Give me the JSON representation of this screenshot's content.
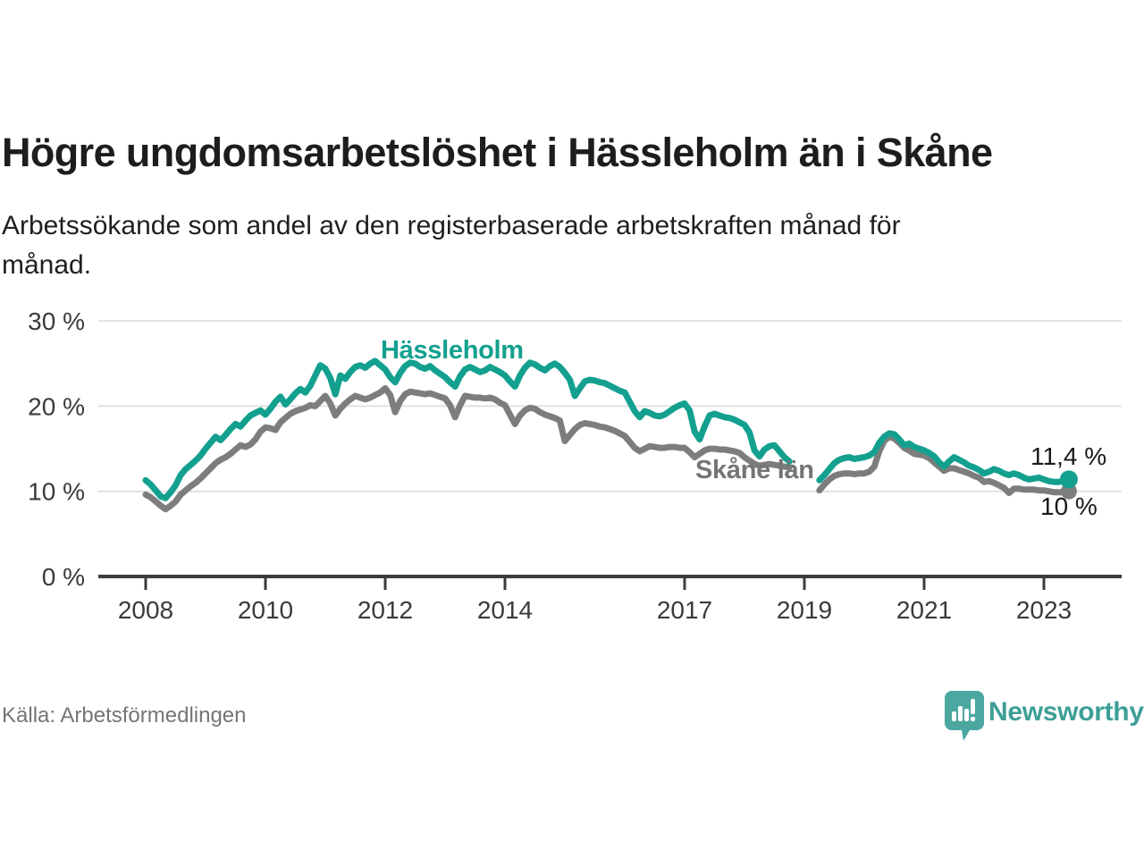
{
  "header": {
    "title": "Högre ungdomsarbetslöshet i Hässleholm än i Skåne",
    "subtitle": "Arbetssökande som andel av den registerbaserade arbetskraften månad för\nmånad."
  },
  "chart_data": {
    "type": "line",
    "x_start": "2008-01",
    "x_end": "2023-06",
    "frequency": "monthly",
    "data_gap": "no data Nov 2018 – Mar 2019",
    "x_tick_years": [
      2008,
      2010,
      2012,
      2014,
      2017,
      2019,
      2021,
      2023
    ],
    "y_ticks": [
      0,
      10,
      20,
      30
    ],
    "y_tick_labels": [
      "0 %",
      "10 %",
      "20 %",
      "30 %"
    ],
    "ylim": [
      0,
      32
    ],
    "xlim": [
      2007.2,
      2024.6
    ],
    "grid": "horizontal",
    "legend": "inline-labels",
    "series": [
      {
        "name": "Skåne län",
        "color": "#7d7d7d",
        "end_label": "10 %",
        "end_value": 10.0,
        "dot_radius": 9,
        "values": [
          9.6,
          9.3,
          8.8,
          8.3,
          7.9,
          8.3,
          8.8,
          9.6,
          10.1,
          10.6,
          11.0,
          11.5,
          12.1,
          12.7,
          13.3,
          13.7,
          14.0,
          14.4,
          14.9,
          15.4,
          15.2,
          15.5,
          16.1,
          17.0,
          17.5,
          17.4,
          17.2,
          18.1,
          18.6,
          19.1,
          19.4,
          19.6,
          19.8,
          20.1,
          20.0,
          20.6,
          21.2,
          20.3,
          18.9,
          19.7,
          20.3,
          20.8,
          21.2,
          21.0,
          20.8,
          21.0,
          21.3,
          21.6,
          22.1,
          21.3,
          19.3,
          20.6,
          21.4,
          21.7,
          21.6,
          21.5,
          21.4,
          21.5,
          21.3,
          21.1,
          20.9,
          20.1,
          18.7,
          20.1,
          21.2,
          21.1,
          21.0,
          21.0,
          20.9,
          21.0,
          20.8,
          20.4,
          20.1,
          19.0,
          17.9,
          18.9,
          19.5,
          19.8,
          19.7,
          19.3,
          19.0,
          18.8,
          18.6,
          18.3,
          15.9,
          16.6,
          17.3,
          17.8,
          18.0,
          17.9,
          17.8,
          17.6,
          17.5,
          17.3,
          17.1,
          16.8,
          16.5,
          15.8,
          15.1,
          14.7,
          15.0,
          15.3,
          15.2,
          15.1,
          15.1,
          15.2,
          15.2,
          15.1,
          15.1,
          14.6,
          14.0,
          14.4,
          14.8,
          15.0,
          15.0,
          14.9,
          14.9,
          14.8,
          14.7,
          14.5,
          14.0,
          13.6,
          13.2,
          13.0,
          13.1,
          13.2,
          13.1,
          13.0,
          12.9,
          12.8,
          null,
          null,
          null,
          null,
          null,
          10.1,
          10.8,
          11.4,
          11.8,
          12.0,
          12.1,
          12.1,
          12.0,
          12.1,
          12.1,
          12.3,
          12.9,
          14.7,
          15.9,
          16.4,
          16.2,
          15.7,
          15.1,
          14.8,
          14.4,
          14.3,
          14.2,
          13.9,
          13.4,
          12.9,
          12.4,
          12.7,
          12.7,
          12.5,
          12.3,
          12.1,
          11.8,
          11.6,
          11.1,
          11.2,
          11.0,
          10.7,
          10.4,
          9.8,
          10.3,
          10.3,
          10.2,
          10.2,
          10.2,
          10.1,
          10.1,
          10.0,
          9.9,
          9.9,
          9.9,
          10.0
        ]
      },
      {
        "name": "Hässleholm",
        "color": "#13a08f",
        "end_label": "11,4 %",
        "end_value": 11.4,
        "dot_radius": 10,
        "values": [
          11.3,
          10.8,
          10.1,
          9.4,
          9.2,
          9.9,
          10.7,
          11.9,
          12.6,
          13.1,
          13.6,
          14.2,
          15.0,
          15.7,
          16.4,
          16.0,
          16.6,
          17.3,
          17.9,
          17.6,
          18.3,
          18.9,
          19.2,
          19.5,
          19.0,
          19.7,
          20.5,
          21.1,
          20.2,
          20.8,
          21.5,
          22.0,
          21.6,
          22.4,
          23.6,
          24.8,
          24.4,
          23.3,
          21.4,
          23.6,
          23.2,
          24.0,
          24.6,
          24.8,
          24.5,
          25.0,
          25.3,
          24.8,
          24.3,
          23.4,
          22.8,
          23.9,
          24.7,
          25.1,
          25.0,
          24.6,
          24.4,
          24.7,
          24.2,
          23.8,
          23.4,
          22.8,
          22.3,
          23.5,
          24.3,
          24.6,
          24.3,
          24.0,
          24.2,
          24.6,
          24.3,
          24.0,
          23.6,
          22.9,
          22.3,
          23.6,
          24.5,
          25.1,
          24.9,
          24.5,
          24.2,
          24.7,
          25.0,
          24.6,
          23.9,
          23.1,
          21.2,
          22.1,
          22.9,
          23.1,
          23.0,
          22.8,
          22.7,
          22.4,
          22.1,
          21.8,
          21.6,
          20.5,
          19.4,
          18.7,
          19.4,
          19.2,
          18.9,
          18.8,
          19.0,
          19.4,
          19.8,
          20.1,
          20.3,
          19.5,
          17.0,
          16.1,
          17.6,
          18.9,
          19.1,
          18.9,
          18.7,
          18.6,
          18.4,
          18.1,
          17.8,
          16.9,
          14.8,
          14.1,
          14.9,
          15.3,
          15.4,
          14.7,
          14.0,
          13.5,
          null,
          null,
          null,
          null,
          null,
          11.3,
          11.9,
          12.6,
          13.3,
          13.7,
          13.9,
          14.0,
          13.8,
          13.9,
          14.0,
          14.2,
          14.6,
          15.7,
          16.4,
          16.8,
          16.7,
          16.1,
          15.4,
          15.6,
          15.2,
          15.0,
          14.8,
          14.5,
          14.1,
          13.4,
          12.9,
          13.5,
          14.0,
          13.7,
          13.4,
          13.0,
          12.8,
          12.5,
          12.1,
          12.3,
          12.6,
          12.4,
          12.1,
          11.9,
          12.1,
          11.9,
          11.6,
          11.4,
          11.5,
          11.6,
          11.4,
          11.2,
          11.1,
          11.1,
          11.2,
          11.4
        ]
      }
    ]
  },
  "footer": {
    "source": "Källa: Arbetsförmedlingen",
    "brand": "Newsworthy"
  },
  "colors": {
    "teal_line": "#13a08f",
    "gray_line": "#7d7d7d",
    "axis": "#3c3c3c",
    "grid": "#e1e1e1",
    "logo_teal": "#4ba7a0",
    "brand_text": "#3d9f97"
  }
}
